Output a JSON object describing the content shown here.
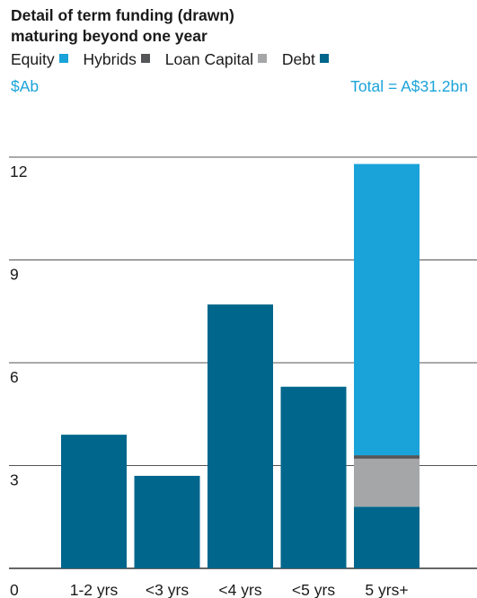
{
  "chart_data": {
    "type": "bar",
    "stacked": true,
    "title_lines": [
      "Detail of term funding (drawn)",
      "maturing beyond one year"
    ],
    "unit": "$Ab",
    "total": "Total = A$31.2bn",
    "categories": [
      "1-2 yrs",
      "<3 yrs",
      "<4 yrs",
      "<5 yrs",
      "5 yrs+"
    ],
    "series": [
      {
        "name": "Debt",
        "values": [
          3.9,
          2.7,
          7.7,
          5.3,
          1.8
        ],
        "color": "#00668c"
      },
      {
        "name": "Loan Capital",
        "values": [
          0,
          0,
          0,
          0,
          1.4
        ],
        "color": "#a5a6a8"
      },
      {
        "name": "Hybrids",
        "values": [
          0,
          0,
          0,
          0,
          0.1
        ],
        "color": "#555658"
      },
      {
        "name": "Equity",
        "values": [
          0,
          0,
          0,
          0,
          8.5
        ],
        "color": "#1aa3d9"
      }
    ],
    "legend_order": [
      {
        "name": "Equity",
        "color": "#1aa3d9"
      },
      {
        "name": "Hybrids",
        "color": "#555658"
      },
      {
        "name": "Loan Capital",
        "color": "#a5a6a8"
      },
      {
        "name": "Debt",
        "color": "#00668c"
      }
    ],
    "yticks": [
      "0",
      "3",
      "6",
      "9",
      "12"
    ],
    "ylim": [
      0,
      12
    ],
    "grid": true,
    "legend_position": "top"
  }
}
